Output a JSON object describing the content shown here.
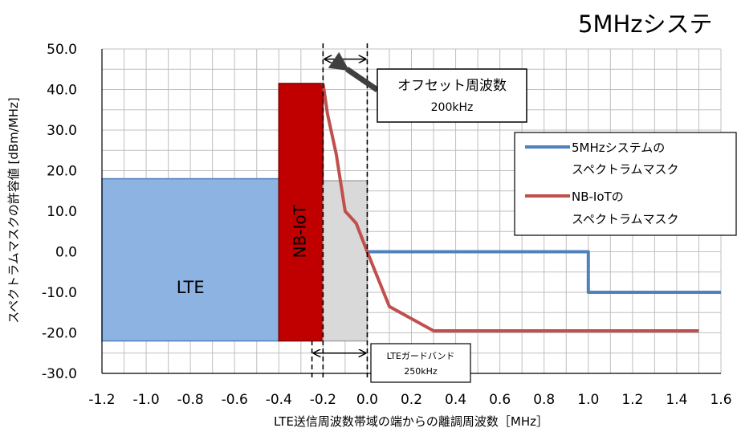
{
  "chart_data": {
    "type": "line",
    "title": "5MHzシステ",
    "xlabel": "LTE送信周波数帯域の端からの離調周波数［MHz］",
    "ylabel": "スペクトラムマスクの許容値 [dBm/MHz]",
    "xlim": [
      -1.2,
      1.6
    ],
    "ylim": [
      -30,
      50
    ],
    "x_ticks": [
      "-1.2",
      "-1.0",
      "-0.8",
      "-0.6",
      "-0.4",
      "-0.2",
      "0.0",
      "0.2",
      "0.4",
      "0.6",
      "0.8",
      "1.0",
      "1.2",
      "1.4",
      "1.6"
    ],
    "y_ticks": [
      "50.0",
      "40.0",
      "30.0",
      "20.0",
      "10.0",
      "0.0",
      "-10.0",
      "-20.0",
      "-30.0"
    ],
    "grid": true,
    "legend_position": "right",
    "series": [
      {
        "name": "5MHzシステムのスペクトラムマスク",
        "legend_lines": [
          "5MHzシステムの",
          "スペクトラムマスク"
        ],
        "color": "#4f81bd",
        "points": [
          [
            0.0,
            0.0
          ],
          [
            1.0,
            0.0
          ],
          [
            1.0,
            -10.0
          ],
          [
            1.6,
            -10.0
          ]
        ]
      },
      {
        "name": "NB-IoTのスペクトラムマスク",
        "legend_lines": [
          "NB-IoTの",
          "スペクトラムマスク"
        ],
        "color": "#c0504d",
        "points": [
          [
            -0.2,
            41.5
          ],
          [
            -0.18,
            34.0
          ],
          [
            -0.14,
            24.0
          ],
          [
            -0.1,
            10.0
          ],
          [
            -0.05,
            7.0
          ],
          [
            0.0,
            0.0
          ],
          [
            0.1,
            -13.5
          ],
          [
            0.3,
            -19.5
          ],
          [
            1.5,
            -19.5
          ]
        ]
      }
    ],
    "regions": [
      {
        "label": "LTE",
        "x": [
          -1.2,
          -0.4
        ],
        "y": [
          -22,
          18
        ],
        "fill": "#8db3e2",
        "stroke": "#4f81bd"
      },
      {
        "label": "NB-IoT",
        "x": [
          -0.4,
          -0.2
        ],
        "y": [
          -22,
          41.5
        ],
        "fill": "#c00000",
        "stroke": "#7f0000",
        "vertical_label": true
      },
      {
        "label": "",
        "x": [
          -0.2,
          0.0
        ],
        "y": [
          -22,
          17.5
        ],
        "fill": "#d9d9d9",
        "stroke": "#a6a6a6"
      }
    ],
    "dashed_lines": [
      {
        "x": -0.2,
        "y": [
          -31,
          52
        ]
      },
      {
        "x": 0.0,
        "y": [
          -31,
          52
        ]
      },
      {
        "x": -0.25,
        "y": [
          -31,
          -22
        ]
      }
    ],
    "annotations": {
      "offset": {
        "lines": [
          "オフセット周波数",
          "200kHz"
        ],
        "span": [
          -0.2,
          0.0
        ],
        "y": 47.5
      },
      "guard": {
        "lines": [
          "LTEガードバンド",
          "250kHz"
        ],
        "span": [
          -0.25,
          0.0
        ],
        "y": -25
      }
    }
  }
}
